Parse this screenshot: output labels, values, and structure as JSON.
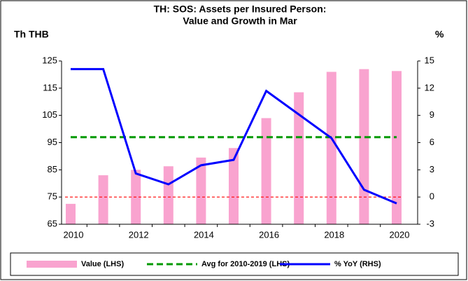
{
  "chart_data": {
    "type": "bar-line",
    "title": [
      "TH: SOS: Assets per Insured Person:",
      "Value and Growth in Mar"
    ],
    "y_label": "Th THB",
    "y2_label": "%",
    "categories": [
      "2010",
      null,
      "2012",
      null,
      "2014",
      null,
      "2016",
      null,
      "2018",
      null,
      "2020"
    ],
    "series": [
      {
        "name": "Value (LHS)",
        "kind": "bar",
        "color": "#f9a3cf",
        "axis": "y",
        "values": [
          72.5,
          83,
          85,
          86.3,
          89.5,
          93,
          104,
          113.5,
          121,
          122,
          121.3
        ]
      },
      {
        "name": "Avg for 2010-2019 (LHS)",
        "kind": "dashed-line",
        "color": "#009900",
        "axis": "y",
        "values": [
          97,
          97,
          97,
          97,
          97,
          97,
          97,
          97,
          97,
          97,
          97
        ]
      },
      {
        "name": "% YoY (RHS)",
        "kind": "line",
        "color": "#0000ff",
        "axis": "y2",
        "values": [
          14.1,
          14.1,
          2.6,
          1.4,
          3.5,
          4.1,
          11.7,
          9.1,
          6.5,
          0.8,
          -0.7
        ]
      }
    ],
    "reference_line": {
      "axis": "y2",
      "value": 0,
      "color": "#ff0000"
    },
    "ylim": [
      65,
      125
    ],
    "yticks": [
      65,
      75,
      85,
      95,
      105,
      115,
      125
    ],
    "y2lim": [
      -3,
      15
    ],
    "y2ticks": [
      -3,
      0,
      3,
      6,
      9,
      12,
      15
    ],
    "legend": "bottom"
  }
}
